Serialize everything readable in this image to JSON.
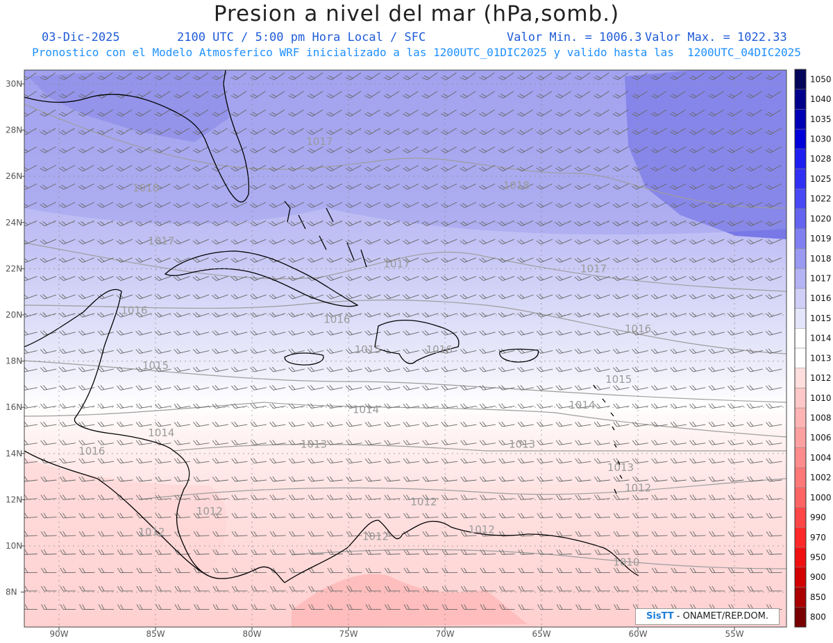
{
  "header": {
    "title": "Presion a nivel del mar (hPa,somb.)",
    "date": "03-Dic-2025",
    "time": "2100 UTC / 5:00 pm Hora Local / SFC",
    "min": "Valor Min. = 1006.3",
    "max": "Valor Max. = 1022.33",
    "forecast": "Pronostico con el Modelo Atmosferico WRF inicializado a las 1200UTC_01DIC2025 y valido hasta las  1200UTC_04DIC2025"
  },
  "axes": {
    "lat_labels": [
      "30N",
      "28N",
      "26N",
      "24N",
      "22N",
      "20N",
      "18N",
      "16N",
      "14N",
      "12N",
      "10N",
      "8N"
    ],
    "lon_labels": [
      "90W",
      "85W",
      "80W",
      "75W",
      "70W",
      "65W",
      "60W",
      "55W"
    ]
  },
  "colorbar": {
    "levels": [
      "1050",
      "1040",
      "1035",
      "1030",
      "1028",
      "1025",
      "1022",
      "1020",
      "1019",
      "1018",
      "1017",
      "1016",
      "1015",
      "1014",
      "1013",
      "1012",
      "1010",
      "1008",
      "1006",
      "1004",
      "1002",
      "1000",
      "990",
      "970",
      "950",
      "900",
      "850",
      "800"
    ],
    "colors": [
      "#05055a",
      "#00008b",
      "#0000b4",
      "#0000d8",
      "#1e1ef0",
      "#3030f5",
      "#4848f5",
      "#6464f0",
      "#8080f0",
      "#9a9af2",
      "#b4b4f4",
      "#cfcff7",
      "#e4e4fa",
      "#ffffff",
      "#ffffff",
      "#ffdede",
      "#ffc8c8",
      "#ffb4b4",
      "#ffa0a0",
      "#ff8c8c",
      "#ff7878",
      "#ff6464",
      "#ff4646",
      "#ff2828",
      "#f01010",
      "#d20000",
      "#aa0000",
      "#780000"
    ]
  },
  "isobars": [
    {
      "label": "1017",
      "lon": -76.5,
      "lat": 27.5
    },
    {
      "label": "1018",
      "lon": -85.5,
      "lat": 25.5
    },
    {
      "label": "1018",
      "lon": -66.3,
      "lat": 25.6
    },
    {
      "label": "1017",
      "lon": -84.7,
      "lat": 23.2
    },
    {
      "label": "1017",
      "lon": -72.5,
      "lat": 22.2
    },
    {
      "label": "1017",
      "lon": -62.3,
      "lat": 22.0
    },
    {
      "label": "1016",
      "lon": -86.1,
      "lat": 20.2
    },
    {
      "label": "1016",
      "lon": -75.6,
      "lat": 19.8
    },
    {
      "label": "1016",
      "lon": -60.0,
      "lat": 19.4
    },
    {
      "label": "1015",
      "lon": -74.0,
      "lat": 18.5
    },
    {
      "label": "1016",
      "lon": -70.3,
      "lat": 18.5
    },
    {
      "label": "1015",
      "lon": -85.0,
      "lat": 17.8
    },
    {
      "label": "1015",
      "lon": -61.0,
      "lat": 17.2
    },
    {
      "label": "1014",
      "lon": -74.1,
      "lat": 15.9
    },
    {
      "label": "1014",
      "lon": -62.9,
      "lat": 16.1
    },
    {
      "label": "1014",
      "lon": -84.7,
      "lat": 14.9
    },
    {
      "label": "1013",
      "lon": -76.8,
      "lat": 14.4
    },
    {
      "label": "1013",
      "lon": -66.0,
      "lat": 14.4
    },
    {
      "label": "1016",
      "lon": -88.3,
      "lat": 14.1
    },
    {
      "label": "1013",
      "lon": -60.9,
      "lat": 13.4
    },
    {
      "label": "1012",
      "lon": -60.0,
      "lat": 12.5
    },
    {
      "label": "1012",
      "lon": -71.1,
      "lat": 11.9
    },
    {
      "label": "1012",
      "lon": -82.2,
      "lat": 11.5
    },
    {
      "label": "1012",
      "lon": -73.6,
      "lat": 10.4
    },
    {
      "label": "1012",
      "lon": -68.1,
      "lat": 10.7
    },
    {
      "label": "1012",
      "lon": -85.2,
      "lat": 10.6
    },
    {
      "label": "1010",
      "lon": -60.6,
      "lat": 9.3
    }
  ],
  "credit": {
    "logo": "SisTT",
    "text": " - ONAMET/REP.DOM."
  }
}
